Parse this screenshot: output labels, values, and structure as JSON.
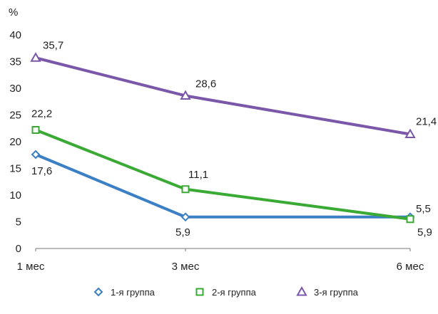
{
  "chart_data": {
    "type": "line",
    "title": "",
    "ylabel": "%",
    "xlabel": "",
    "categories": [
      "1 мес",
      "3 мес",
      "6 мес"
    ],
    "x": [
      1,
      3,
      6
    ],
    "ylim": [
      0,
      40
    ],
    "yticks": [
      "0",
      "5",
      "10",
      "15",
      "20",
      "25",
      "30",
      "35",
      "40"
    ],
    "grid": false,
    "legend_position": "bottom",
    "series": [
      {
        "name": "1-я группа",
        "values": [
          17.6,
          5.9,
          5.9
        ],
        "labels": [
          "17,6",
          "5,9",
          "5,9"
        ],
        "color": "#3b7fc4",
        "marker": "diamond"
      },
      {
        "name": "2-я группа",
        "values": [
          22.2,
          11.1,
          5.5
        ],
        "labels": [
          "22,2",
          "11,1",
          "5,5"
        ],
        "color": "#3aaa35",
        "marker": "square"
      },
      {
        "name": "3-я группа",
        "values": [
          35.7,
          28.6,
          21.4
        ],
        "labels": [
          "35,7",
          "28,6",
          "21,4"
        ],
        "color": "#7a57a8",
        "marker": "triangle"
      }
    ]
  }
}
